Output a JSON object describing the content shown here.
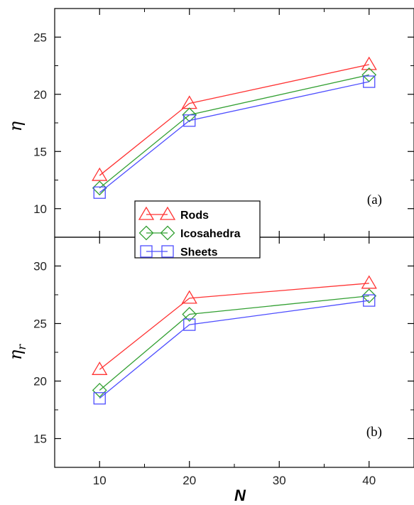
{
  "chart_data": [
    {
      "type": "line",
      "panel_label": "(a)",
      "ylabel": "η",
      "xlabel": "",
      "x": [
        10,
        20,
        40
      ],
      "xlim": [
        5,
        45
      ],
      "ylim": [
        7.5,
        27.5
      ],
      "x_ticks": [
        10,
        20,
        30,
        40
      ],
      "y_ticks": [
        10,
        15,
        20,
        25
      ],
      "series": [
        {
          "name": "Rods",
          "color": "#ff3333",
          "marker": "triangle",
          "values": [
            12.9,
            19.2,
            22.6
          ]
        },
        {
          "name": "Icosahedra",
          "color": "#33a033",
          "marker": "diamond",
          "values": [
            11.8,
            18.2,
            21.7
          ]
        },
        {
          "name": "Sheets",
          "color": "#4d4dff",
          "marker": "square",
          "values": [
            11.4,
            17.7,
            21.1
          ]
        }
      ],
      "legend": {
        "placement": "bottom-left",
        "entries": [
          "Rods",
          "Icosahedra",
          "Sheets"
        ]
      }
    },
    {
      "type": "line",
      "panel_label": "(b)",
      "ylabel": "ηr",
      "ylabel_main": "η",
      "ylabel_sub": "r",
      "xlabel": "N",
      "x": [
        10,
        20,
        40
      ],
      "xlim": [
        5,
        45
      ],
      "ylim": [
        12.5,
        32.5
      ],
      "x_ticks": [
        10,
        20,
        30,
        40
      ],
      "y_ticks": [
        15,
        20,
        25,
        30
      ],
      "series": [
        {
          "name": "Rods",
          "color": "#ff3333",
          "marker": "triangle",
          "values": [
            21.0,
            27.2,
            28.5
          ]
        },
        {
          "name": "Icosahedra",
          "color": "#33a033",
          "marker": "diamond",
          "values": [
            19.2,
            25.8,
            27.4
          ]
        },
        {
          "name": "Sheets",
          "color": "#4d4dff",
          "marker": "square",
          "values": [
            18.5,
            24.9,
            27.0
          ]
        }
      ]
    }
  ]
}
